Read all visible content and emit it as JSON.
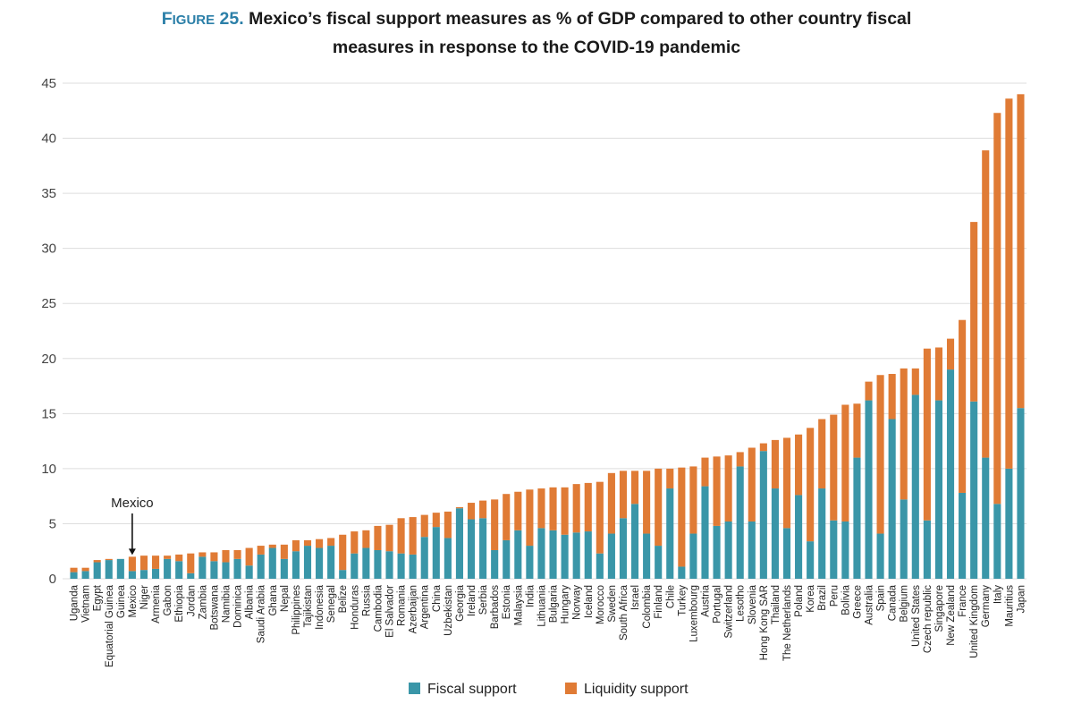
{
  "title": {
    "label_prefix": "Figure",
    "label_number": "25.",
    "line1": "Mexico’s fiscal support measures as % of GDP compared to other country fiscal",
    "line2": "measures in response to the COVID-19 pandemic"
  },
  "colors": {
    "fiscal": "#3a96a8",
    "liquidity": "#e07b35",
    "grid": "#dddddd",
    "title_accent": "#2b7fa8"
  },
  "chart_data": {
    "type": "bar",
    "stacked": true,
    "title": "Mexico’s fiscal support measures as % of GDP compared to other country fiscal measures in response to the COVID-19 pandemic",
    "xlabel": "",
    "ylabel": "",
    "ylim": [
      0,
      45
    ],
    "yticks": [
      0,
      5,
      10,
      15,
      20,
      25,
      30,
      35,
      40,
      45
    ],
    "grid": true,
    "legend_position": "bottom",
    "categories": [
      "Uganda",
      "Vietnam",
      "Egypt",
      "Equatorial Guinea",
      "Guinea",
      "Mexico",
      "Niger",
      "Armenia",
      "Gabon",
      "Ethiopia",
      "Jordan",
      "Zambia",
      "Botswana",
      "Namibia",
      "Dominica",
      "Albania",
      "Saudi Arabia",
      "Ghana",
      "Nepal",
      "Philippines",
      "Tajikistan",
      "Indonesia",
      "Senegal",
      "Belize",
      "Honduras",
      "Russia",
      "Cambodia",
      "El Salvador",
      "Romania",
      "Azerbaijan",
      "Argentina",
      "China",
      "Uzbekistan",
      "Georgia",
      "Ireland",
      "Serbia",
      "Barbados",
      "Estonia",
      "Malaysia",
      "India",
      "Lithuania",
      "Bulgaria",
      "Hungary",
      "Norway",
      "Iceland",
      "Morocco",
      "Sweden",
      "South Africa",
      "Israel",
      "Colombia",
      "Finland",
      "Chile",
      "Turkey",
      "Luxembourg",
      "Austria",
      "Portugal",
      "Switzerland",
      "Lesotho",
      "Slovenia",
      "Hong Kong SAR",
      "Thailand",
      "The Netherlands",
      "Poland",
      "Korea",
      "Brazil",
      "Peru",
      "Bolivia",
      "Greece",
      "Australia",
      "Spain",
      "Canada",
      "Belgium",
      "United States",
      "Czech republic",
      "Singapore",
      "New Zealand",
      "France",
      "United Kingdom",
      "Germany",
      "Italy",
      "Mauritius",
      "Japan"
    ],
    "series": [
      {
        "name": "Fiscal support",
        "values": [
          0.6,
          0.7,
          1.5,
          1.7,
          1.8,
          0.7,
          0.8,
          0.9,
          1.8,
          1.6,
          0.5,
          2.0,
          1.6,
          1.5,
          1.8,
          1.2,
          2.2,
          2.8,
          1.8,
          2.5,
          3.0,
          2.8,
          3.0,
          0.8,
          2.3,
          2.8,
          2.6,
          2.5,
          2.3,
          2.2,
          3.8,
          4.7,
          3.7,
          6.4,
          5.4,
          5.5,
          2.6,
          3.5,
          4.4,
          3.0,
          4.6,
          4.4,
          4.0,
          4.2,
          4.3,
          2.3,
          4.1,
          5.5,
          6.8,
          4.1,
          3.0,
          8.2,
          1.1,
          4.1,
          8.4,
          4.8,
          5.2,
          10.2,
          5.2,
          11.6,
          8.2,
          4.6,
          7.6,
          3.4,
          8.2,
          5.3,
          5.2,
          11.0,
          16.2,
          4.1,
          14.5,
          7.2,
          16.7,
          5.3,
          16.2,
          19.0,
          7.8,
          16.1,
          11.0,
          6.8,
          10.0,
          15.5
        ]
      },
      {
        "name": "Liquidity support",
        "values": [
          0.4,
          0.3,
          0.2,
          0.1,
          0.0,
          1.3,
          1.3,
          1.2,
          0.3,
          0.6,
          1.8,
          0.4,
          0.8,
          1.1,
          0.8,
          1.6,
          0.8,
          0.3,
          1.3,
          1.0,
          0.5,
          0.8,
          0.7,
          3.2,
          2.0,
          1.6,
          2.2,
          2.4,
          3.2,
          3.4,
          2.0,
          1.3,
          2.4,
          0.1,
          1.5,
          1.6,
          4.6,
          4.2,
          3.5,
          5.1,
          3.6,
          3.9,
          4.3,
          4.4,
          4.4,
          6.5,
          5.5,
          4.3,
          3.0,
          5.7,
          7.0,
          1.8,
          9.0,
          6.1,
          2.6,
          6.3,
          6.0,
          1.3,
          6.7,
          0.7,
          4.4,
          8.2,
          5.5,
          10.3,
          6.3,
          9.6,
          10.6,
          4.9,
          1.7,
          14.4,
          4.1,
          11.9,
          2.4,
          15.6,
          4.8,
          2.8,
          15.7,
          16.3,
          27.9,
          35.5,
          33.6,
          28.5
        ]
      }
    ],
    "annotations": [
      {
        "text": "Mexico",
        "target": "Mexico",
        "arrow": "down"
      }
    ]
  }
}
